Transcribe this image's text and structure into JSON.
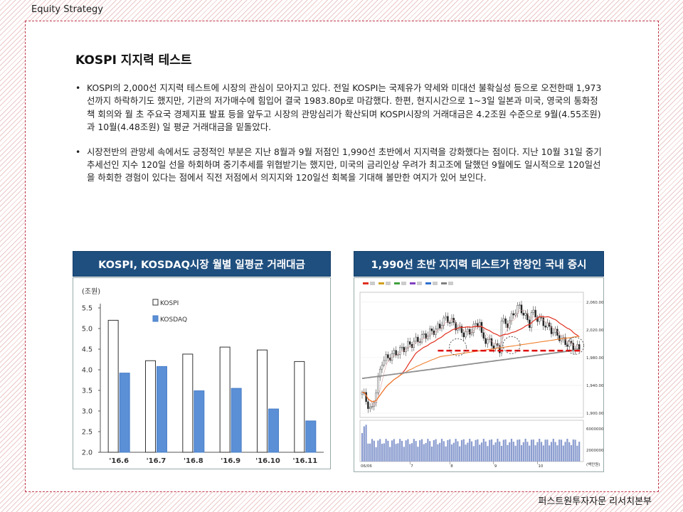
{
  "header": {
    "section_label": "Equity Strategy"
  },
  "page": {
    "title": "KOSPI 지지력 테스트",
    "bullets": [
      "KOSPI의 2,000선 지지력 테스트에 시장의 관심이 모아지고 있다. 전일 KOSPI는 국제유가 약세와 미대선 불확실성 등으로 오전한때 1,973선까지 하락하기도 했지만, 기관의 저가매수에 힘입어 결국 1983.80p로 마감했다. 한편, 현지시간으로 1~3일 일본과 미국, 영국의 통화정책 회의와 월 초 주요국 경제지표 발표 등을 앞두고 시장의 관망심리가 확산되며 KOSPI시장의 거래대금은 4.2조원 수준으로 9월(4.55조원)과 10월(4.48조원) 일 평균 거래대금을 밑돌았다.",
      "시장전반의 관망세 속에서도 긍정적인 부분은 지난 8월과 9월 저점인 1,990선 초반에서 지지력을 강화했다는 점이다. 지난 10월 31일 중기 추세선인 지수 120일 선을 하회하며 중기추세를 위협받기는 했지만, 미국의 금리인상 우려가 최고조에 달했던 9월에도 일시적으로 120일선을 하회한 경험이 있다는 점에서 직전 저점에서 의지지와 120일선 회복을 기대해 볼만한 여지가 있어 보인다."
    ]
  },
  "figures": {
    "left_title": "KOSPI, KOSDAQ시장 월별 일평균 거래대금",
    "right_title": "1,990선 초반 지지력 테스트가 한창인 국내 증시"
  },
  "chart_data": [
    {
      "type": "bar",
      "title": "KOSPI, KOSDAQ시장 월별 일평균 거래대금",
      "unit_label": "(조원)",
      "categories": [
        "'16.6",
        "'16.7",
        "'16.8",
        "'16.9",
        "'16.10",
        "'16.11"
      ],
      "series": [
        {
          "name": "KOSPI",
          "values": [
            5.2,
            4.22,
            4.38,
            4.55,
            4.48,
            4.2
          ],
          "color": "#ffffff"
        },
        {
          "name": "KOSDAQ",
          "values": [
            3.92,
            4.08,
            3.49,
            3.55,
            3.05,
            2.76
          ],
          "color": "#5b8fd6"
        }
      ],
      "ylim": [
        2.0,
        5.5
      ],
      "yticks": [
        "2.0",
        "2.5",
        "3.0",
        "3.5",
        "4.0",
        "4.5",
        "5.0",
        "5.5"
      ],
      "grid": false,
      "legend": "top-center"
    },
    {
      "type": "line",
      "title": "1,990선 초반 지지력 테스트가 한창인 국내 증시",
      "y_right_ticks": [
        "2,060.00",
        "2,020.00",
        "1,980.00",
        "1,940.00",
        "1,900.00"
      ],
      "volume_ticks": [
        "6000000",
        "2000000"
      ],
      "volume_unit": "(백만원)",
      "date_start": "06/06",
      "month_ticks": [
        "7",
        "8",
        "9",
        "10"
      ],
      "support_level": 1990
    }
  ],
  "footer": {
    "org": "퍼스트원투자자문 리서치본부"
  }
}
